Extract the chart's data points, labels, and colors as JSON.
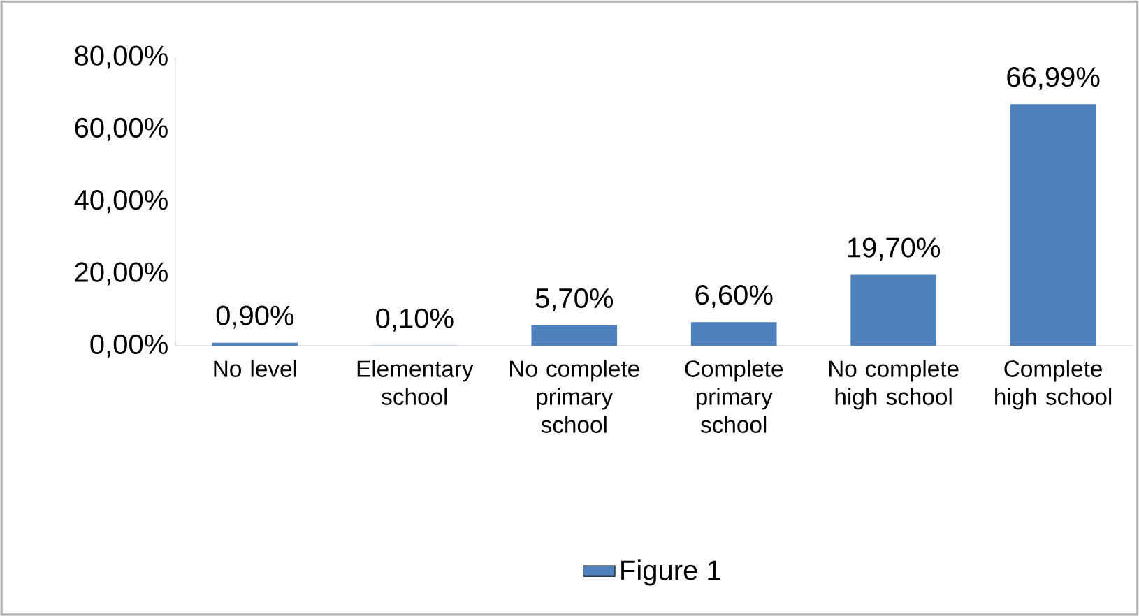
{
  "chart_data": {
    "type": "bar",
    "categories": [
      "No level",
      "Elementary school",
      "No complete primary school",
      "Complete primary school",
      "No complete high school",
      "Complete high school"
    ],
    "series": [
      {
        "name": "Figure 1",
        "color": "#4f81bd",
        "values": [
          0.9,
          0.1,
          5.7,
          6.6,
          19.7,
          66.99
        ],
        "value_labels": [
          "0,90%",
          "0,10%",
          "5,70%",
          "6,60%",
          "19,70%",
          "66,99%"
        ]
      }
    ],
    "ylim": [
      0,
      80
    ],
    "yticks": [
      {
        "value": 0,
        "label": "0,00%"
      },
      {
        "value": 20,
        "label": "20,00%"
      },
      {
        "value": 40,
        "label": "40,00%"
      },
      {
        "value": 60,
        "label": "60,00%"
      },
      {
        "value": 80,
        "label": "80,00%"
      }
    ],
    "grid": false,
    "legend": "bottom"
  }
}
